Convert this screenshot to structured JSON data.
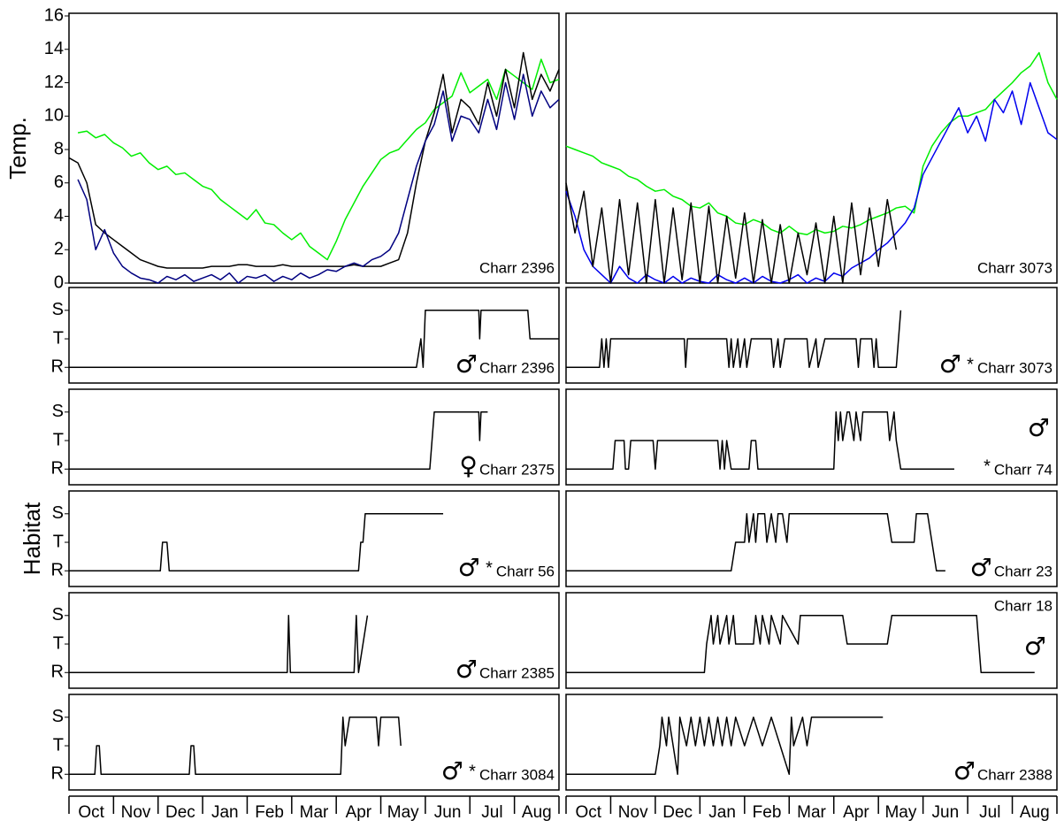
{
  "chart_data": [
    {
      "type": "line",
      "ylabel": "Temp.",
      "label": "Charr 2396",
      "xlim": [
        0,
        11
      ],
      "ylim": [
        0,
        16
      ],
      "yticks": [
        0,
        2,
        4,
        6,
        8,
        10,
        12,
        14,
        16
      ],
      "x": [
        0,
        0.2,
        0.4,
        0.6,
        0.8,
        1.0,
        1.2,
        1.4,
        1.6,
        1.8,
        2.0,
        2.2,
        2.4,
        2.6,
        2.8,
        3.0,
        3.2,
        3.4,
        3.6,
        3.8,
        4.0,
        4.2,
        4.4,
        4.6,
        4.8,
        5.0,
        5.2,
        5.4,
        5.6,
        5.8,
        6.0,
        6.2,
        6.4,
        6.6,
        6.8,
        7.0,
        7.2,
        7.4,
        7.6,
        7.8,
        8.0,
        8.2,
        8.4,
        8.6,
        8.8,
        9.0,
        9.2,
        9.4,
        9.6,
        9.8,
        10.0,
        10.2,
        10.4,
        10.6,
        10.8,
        11.0
      ],
      "series": [
        {
          "color": "#00ee00",
          "values": [
            null,
            9,
            9.1,
            8.7,
            8.9,
            8.4,
            8.1,
            7.6,
            7.8,
            7.2,
            6.8,
            7.0,
            6.5,
            6.6,
            6.2,
            5.8,
            5.6,
            5.0,
            4.6,
            4.2,
            3.8,
            4.4,
            3.6,
            3.5,
            3.0,
            2.6,
            3.0,
            2.2,
            1.8,
            1.4,
            2.5,
            3.8,
            4.8,
            5.8,
            6.6,
            7.4,
            7.8,
            8.0,
            8.6,
            9.2,
            9.6,
            10.4,
            10.8,
            11.2,
            12.6,
            11.4,
            11.8,
            12.2,
            11.0,
            12.8,
            12.4,
            12.0,
            11.6,
            13.4,
            12.0,
            12.2
          ]
        },
        {
          "color": "#000000",
          "values": [
            7.5,
            7.2,
            6.0,
            3.5,
            3.0,
            2.6,
            2.2,
            1.8,
            1.4,
            1.2,
            1.0,
            0.9,
            0.9,
            0.9,
            0.9,
            0.9,
            1.0,
            1.0,
            1.0,
            1.1,
            1.1,
            1.0,
            1.0,
            1.0,
            1.1,
            1.0,
            1.0,
            1.0,
            1.0,
            1.0,
            1.0,
            1.0,
            1.1,
            1.0,
            1.0,
            1.0,
            1.2,
            1.4,
            3.0,
            6.0,
            8.5,
            10.2,
            12.5,
            9.0,
            11.0,
            10.5,
            9.5,
            12.0,
            10.0,
            12.8,
            10.5,
            13.8,
            11.0,
            12.5,
            11.5,
            12.8
          ]
        },
        {
          "color": "#000080",
          "values": [
            null,
            6.2,
            5.0,
            2.0,
            3.2,
            1.8,
            1.0,
            0.6,
            0.3,
            0.2,
            0.0,
            0.4,
            0.2,
            0.5,
            0.1,
            0.3,
            0.5,
            0.2,
            0.6,
            0.0,
            0.4,
            0.3,
            0.5,
            0.1,
            0.4,
            0.2,
            0.6,
            0.3,
            0.5,
            0.8,
            0.7,
            1.0,
            1.2,
            1.0,
            1.4,
            1.6,
            2.0,
            3.0,
            5.0,
            7.0,
            8.5,
            9.5,
            11.5,
            8.5,
            10.0,
            9.8,
            9.0,
            11.0,
            9.2,
            12.0,
            9.8,
            12.5,
            10.0,
            11.5,
            10.5,
            11.0
          ]
        }
      ]
    },
    {
      "type": "line",
      "label": "Charr 3073",
      "xlim": [
        0,
        11
      ],
      "ylim": [
        0,
        16
      ],
      "x": [
        0,
        0.2,
        0.4,
        0.6,
        0.8,
        1.0,
        1.2,
        1.4,
        1.6,
        1.8,
        2.0,
        2.2,
        2.4,
        2.6,
        2.8,
        3.0,
        3.2,
        3.4,
        3.6,
        3.8,
        4.0,
        4.2,
        4.4,
        4.6,
        4.8,
        5.0,
        5.2,
        5.4,
        5.6,
        5.8,
        6.0,
        6.2,
        6.4,
        6.6,
        6.8,
        7.0,
        7.2,
        7.4,
        7.6,
        7.8,
        8.0,
        8.2,
        8.4,
        8.6,
        8.8,
        9.0,
        9.2,
        9.4,
        9.6,
        9.8,
        10.0,
        10.2,
        10.4,
        10.6,
        10.8,
        11.0
      ],
      "series": [
        {
          "color": "#00ee00",
          "values": [
            8.2,
            8.0,
            7.8,
            7.6,
            7.2,
            7.0,
            6.8,
            6.4,
            6.2,
            5.8,
            5.5,
            5.6,
            5.2,
            5.0,
            4.6,
            4.5,
            4.8,
            4.2,
            4.0,
            3.6,
            3.5,
            3.8,
            3.6,
            3.2,
            3.0,
            3.4,
            3.0,
            2.9,
            3.2,
            3.0,
            3.1,
            3.4,
            3.3,
            3.5,
            3.8,
            4.0,
            4.2,
            4.5,
            4.6,
            4.2,
            7.0,
            8.2,
            9.0,
            9.6,
            10.0,
            10.0,
            10.2,
            10.4,
            11.0,
            11.5,
            12.0,
            12.6,
            13.0,
            13.8,
            12.0,
            11.0
          ]
        },
        {
          "color": "#0000ee",
          "values": [
            5.5,
            4.0,
            2.0,
            1.0,
            0.5,
            0.0,
            1.0,
            0.3,
            0.0,
            0.5,
            0.2,
            0.0,
            0.4,
            0.0,
            0.3,
            0.1,
            0.0,
            0.5,
            0.2,
            0.0,
            0.3,
            0.0,
            0.4,
            0.1,
            0.0,
            0.2,
            0.5,
            0.0,
            0.3,
            0.1,
            0.6,
            0.4,
            0.9,
            1.2,
            1.5,
            2.0,
            2.4,
            3.0,
            3.6,
            4.5,
            6.5,
            7.5,
            8.5,
            9.5,
            10.5,
            9.0,
            10.0,
            8.5,
            11.0,
            10.2,
            11.5,
            9.5,
            12.0,
            10.5,
            9.0,
            8.6
          ]
        },
        {
          "color": "#000000",
          "values": [
            6.0,
            3.0,
            5.5,
            1.0,
            4.5,
            0.0,
            5.0,
            0.5,
            4.8,
            0.0,
            5.0,
            0.0,
            4.5,
            0.2,
            4.8,
            0.0,
            4.6,
            0.0,
            4.0,
            0.3,
            4.2,
            0.0,
            3.8,
            0.0,
            3.5,
            0.0,
            3.0,
            0.5,
            3.6,
            0.0,
            4.0,
            0.0,
            4.8,
            0.5,
            4.5,
            1.0,
            5.0,
            2.0,
            null,
            null,
            null,
            null,
            null,
            null,
            null,
            null,
            null,
            null,
            null,
            null,
            null,
            null,
            null,
            null,
            null,
            null
          ]
        }
      ]
    },
    {
      "type": "step",
      "label": "Charr 2396",
      "sex": "♂",
      "xlim": [
        0,
        11
      ],
      "ylim": [
        -0.55,
        2.8
      ],
      "yticks": [
        {
          "value": 0,
          "label": "R"
        },
        {
          "value": 1,
          "label": "T"
        },
        {
          "value": 2,
          "label": "S"
        }
      ],
      "color": "#000000",
      "x": [
        0,
        7.8,
        7.9,
        7.95,
        8.0,
        9.2,
        9.22,
        9.25,
        10.3,
        10.35,
        11
      ],
      "values": [
        0,
        0,
        1,
        0,
        2,
        2,
        1,
        2,
        2,
        1,
        1
      ]
    },
    {
      "type": "step",
      "label": "Charr 2375",
      "sex": "♀",
      "xlim": [
        0,
        11
      ],
      "ylim": [
        -0.55,
        2.8
      ],
      "yticks": [
        {
          "value": 0,
          "label": "R"
        },
        {
          "value": 1,
          "label": "T"
        },
        {
          "value": 2,
          "label": "S"
        }
      ],
      "color": "#000000",
      "x": [
        0,
        8.1,
        8.2,
        9.2,
        9.22,
        9.25,
        9.4
      ],
      "values": [
        0,
        0,
        2,
        2,
        1,
        2,
        2
      ]
    },
    {
      "type": "step",
      "ylabel": "Habitat",
      "label": "Charr 56",
      "sex": "♂",
      "note": "*",
      "xlim": [
        0,
        11
      ],
      "ylim": [
        -0.55,
        2.8
      ],
      "yticks": [
        {
          "value": 0,
          "label": "R"
        },
        {
          "value": 1,
          "label": "T"
        },
        {
          "value": 2,
          "label": "S"
        }
      ],
      "color": "#000000",
      "x": [
        0,
        2.05,
        2.1,
        2.2,
        2.25,
        6.5,
        6.55,
        6.6,
        6.65,
        8.4
      ],
      "values": [
        0,
        0,
        1,
        1,
        0,
        0,
        1,
        1,
        2,
        2
      ]
    },
    {
      "type": "step",
      "label": "Charr 2385",
      "sex": "♂",
      "xlim": [
        0,
        11
      ],
      "ylim": [
        -0.55,
        2.8
      ],
      "yticks": [
        {
          "value": 0,
          "label": "R"
        },
        {
          "value": 1,
          "label": "T"
        },
        {
          "value": 2,
          "label": "S"
        }
      ],
      "color": "#000000",
      "x": [
        0,
        4.9,
        4.93,
        4.97,
        6.4,
        6.45,
        6.5,
        6.7
      ],
      "values": [
        0,
        0,
        2,
        0,
        0,
        2,
        0,
        2
      ]
    },
    {
      "type": "step",
      "label": "Charr 3084",
      "sex": "♂",
      "note": "*",
      "xlim": [
        0,
        11
      ],
      "ylim": [
        -0.55,
        2.8
      ],
      "yticks": [
        {
          "value": 0,
          "label": "R"
        },
        {
          "value": 1,
          "label": "T"
        },
        {
          "value": 2,
          "label": "S"
        }
      ],
      "color": "#000000",
      "categories": [
        "Oct",
        "Nov",
        "Dec",
        "Jan",
        "Feb",
        "Mar",
        "Apr",
        "May",
        "Jun",
        "Jul",
        "Aug"
      ],
      "x": [
        0,
        0.58,
        0.62,
        0.68,
        0.72,
        2.7,
        2.74,
        2.8,
        2.84,
        6.1,
        6.15,
        6.2,
        6.3,
        6.9,
        6.95,
        7.0,
        7.4,
        7.45
      ],
      "values": [
        0,
        0,
        1,
        1,
        0,
        0,
        1,
        1,
        0,
        0,
        2,
        1,
        2,
        2,
        1,
        2,
        2,
        1
      ]
    },
    {
      "type": "step",
      "label": "Charr 3073",
      "sex": "♂",
      "note": "*",
      "xlim": [
        0,
        11
      ],
      "ylim": [
        -0.55,
        2.8
      ],
      "color": "#000000",
      "x": [
        0,
        0.75,
        0.8,
        0.85,
        0.9,
        0.95,
        1.0,
        2.65,
        2.68,
        2.72,
        3.6,
        3.65,
        3.7,
        3.75,
        3.85,
        3.9,
        4.0,
        4.05,
        4.15,
        4.2,
        4.6,
        4.65,
        4.75,
        4.8,
        4.9,
        5.4,
        5.45,
        5.6,
        5.65,
        5.8,
        5.85,
        6.5,
        6.55,
        6.6,
        6.65,
        6.85,
        6.9,
        6.95,
        7.0,
        7.4,
        7.5
      ],
      "values": [
        0,
        0,
        1,
        0,
        1,
        0,
        1,
        1,
        0,
        1,
        1,
        0,
        1,
        0,
        1,
        0,
        1,
        0,
        1,
        1,
        1,
        0,
        1,
        0,
        1,
        1,
        0,
        1,
        0,
        1,
        1,
        1,
        0,
        1,
        1,
        1,
        0,
        1,
        0,
        0,
        2
      ]
    },
    {
      "type": "step",
      "label": "Charr 74",
      "sex": "♂",
      "note": "*",
      "xlim": [
        0,
        11
      ],
      "ylim": [
        -0.55,
        2.8
      ],
      "color": "#000000",
      "x": [
        0,
        1.05,
        1.1,
        1.3,
        1.33,
        1.4,
        1.45,
        1.95,
        2.0,
        2.05,
        3.4,
        3.45,
        3.5,
        3.55,
        3.6,
        3.7,
        4.1,
        4.15,
        4.25,
        4.3,
        6.0,
        6.05,
        6.1,
        6.15,
        6.2,
        6.3,
        6.35,
        6.45,
        6.5,
        6.6,
        6.65,
        6.75,
        7.2,
        7.25,
        7.35,
        7.4,
        7.5,
        8.7
      ],
      "values": [
        0,
        0,
        1,
        1,
        0,
        0,
        1,
        1,
        0,
        1,
        1,
        0,
        1,
        0,
        1,
        0,
        0,
        1,
        1,
        0,
        0,
        2,
        1,
        2,
        1,
        2,
        2,
        1,
        2,
        1,
        2,
        2,
        2,
        1,
        2,
        1,
        0,
        0
      ]
    },
    {
      "type": "step",
      "label": "Charr 23",
      "sex": "♂",
      "xlim": [
        0,
        11
      ],
      "ylim": [
        -0.55,
        2.8
      ],
      "color": "#000000",
      "x": [
        0,
        3.7,
        3.8,
        4.0,
        4.05,
        4.1,
        4.2,
        4.25,
        4.3,
        4.45,
        4.5,
        4.6,
        4.7,
        4.75,
        4.85,
        4.95,
        5.0,
        7.2,
        7.3,
        7.8,
        7.85,
        8.1,
        8.2,
        8.3,
        8.5
      ],
      "values": [
        0,
        0,
        1,
        1,
        2,
        1,
        2,
        1,
        2,
        2,
        1,
        2,
        1,
        2,
        2,
        1,
        2,
        2,
        1,
        1,
        2,
        2,
        1,
        0,
        0
      ]
    },
    {
      "type": "step",
      "label": "Charr 18",
      "sex": "♂",
      "xlim": [
        0,
        11
      ],
      "ylim": [
        -0.55,
        2.8
      ],
      "color": "#000000",
      "x": [
        0,
        3.1,
        3.15,
        3.25,
        3.3,
        3.4,
        3.45,
        3.6,
        3.65,
        3.75,
        3.8,
        4.2,
        4.25,
        4.35,
        4.4,
        4.55,
        4.6,
        4.8,
        4.85,
        5.2,
        5.25,
        5.4,
        6.2,
        6.3,
        7.2,
        7.3,
        9.2,
        9.3,
        10.5
      ],
      "values": [
        0,
        0,
        1,
        2,
        1,
        2,
        1,
        2,
        1,
        2,
        1,
        1,
        2,
        1,
        2,
        1,
        2,
        1,
        2,
        1,
        2,
        2,
        2,
        1,
        1,
        2,
        2,
        0,
        0
      ]
    },
    {
      "type": "step",
      "label": "Charr 2388",
      "sex": "♂",
      "xlim": [
        0,
        11
      ],
      "ylim": [
        -0.55,
        2.8
      ],
      "color": "#000000",
      "categories": [
        "Oct",
        "Nov",
        "Dec",
        "Jan",
        "Feb",
        "Mar",
        "Apr",
        "May",
        "Jun",
        "Jul",
        "Aug"
      ],
      "x": [
        0,
        2.0,
        2.1,
        2.15,
        2.25,
        2.3,
        2.4,
        2.5,
        2.55,
        2.7,
        2.8,
        2.9,
        3.0,
        3.1,
        3.2,
        3.3,
        3.4,
        3.5,
        3.6,
        3.7,
        3.8,
        4.0,
        4.2,
        4.4,
        4.6,
        4.8,
        5.0,
        5.05,
        5.1,
        5.3,
        5.4,
        5.5,
        7.1
      ],
      "values": [
        0,
        0,
        1,
        2,
        1,
        2,
        1,
        0,
        2,
        1,
        2,
        1,
        2,
        1,
        2,
        1,
        2,
        1,
        2,
        1,
        2,
        1,
        2,
        1,
        2,
        1,
        0,
        2,
        1,
        2,
        1,
        2,
        2
      ]
    }
  ]
}
